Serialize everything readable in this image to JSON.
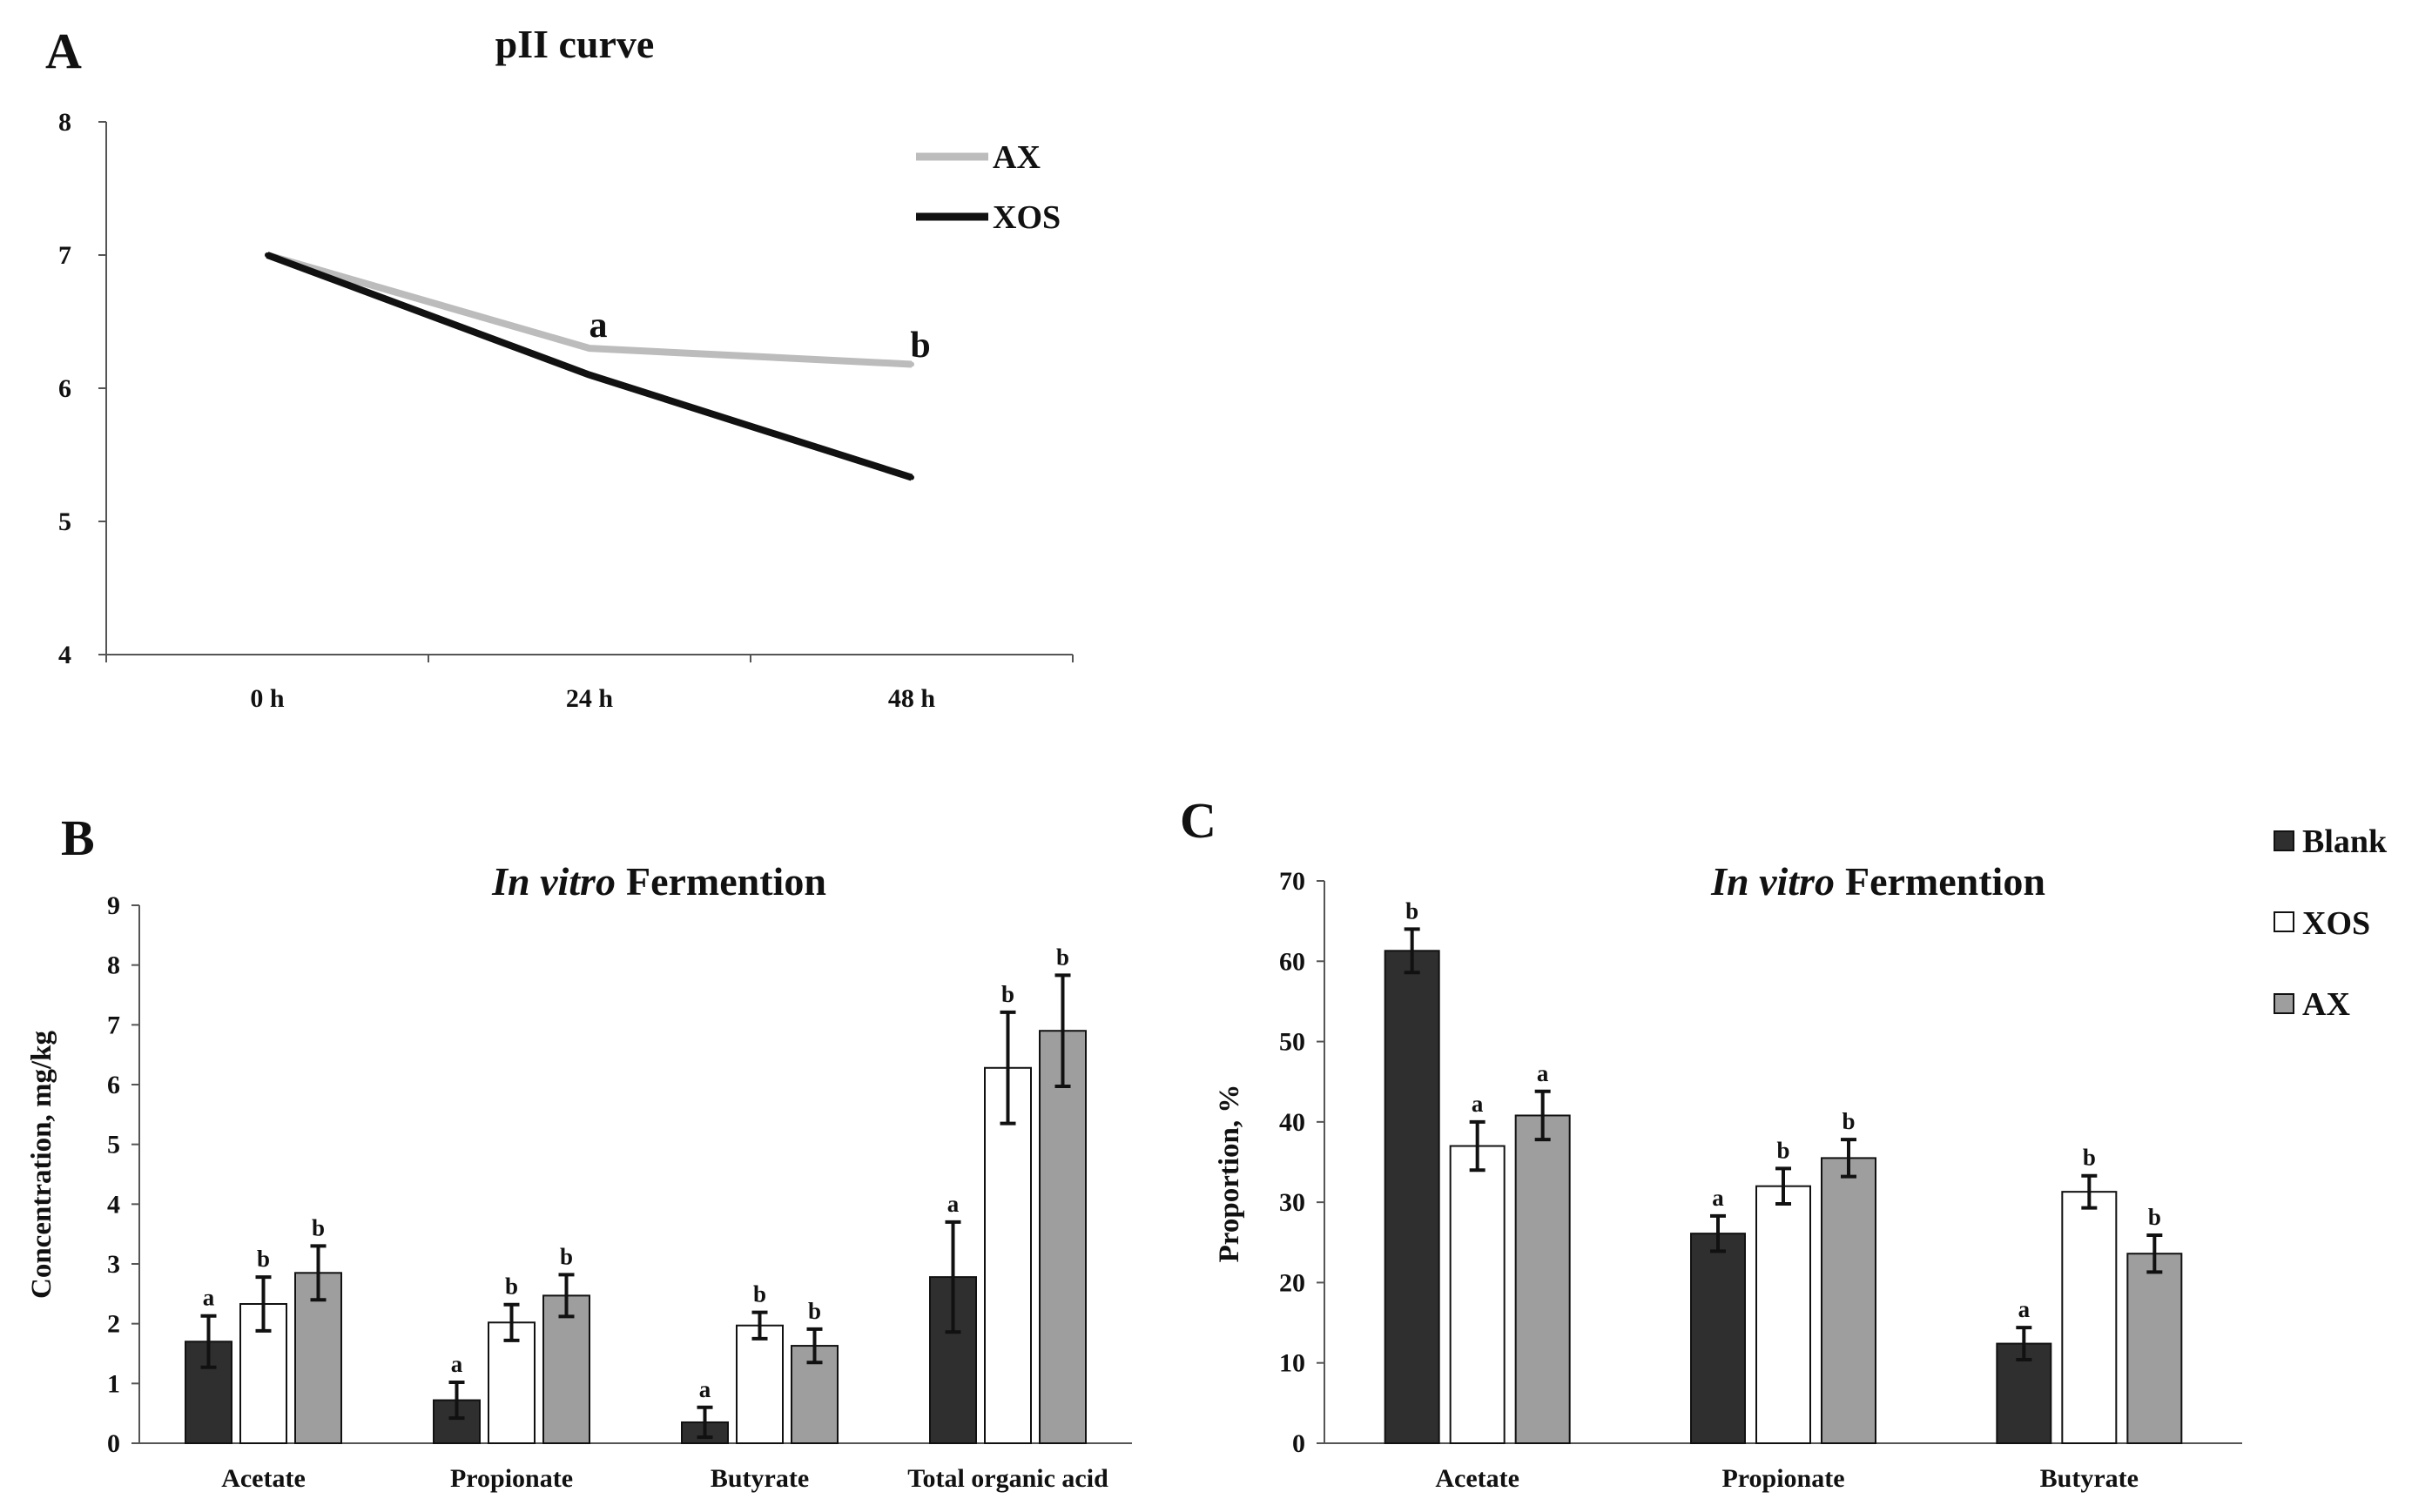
{
  "colors": {
    "blank": "#2f2f2f",
    "xos": "#ffffff",
    "ax": "#9e9e9e",
    "line_ax": "#bcbcbc",
    "line_xos": "#111111",
    "axis": "#555555"
  },
  "chart_data": [
    {
      "id": "A",
      "panel_label": "A",
      "type": "line",
      "title": "pII curve",
      "categories": [
        "0 h",
        "24 h",
        "48 h"
      ],
      "ylim": [
        4,
        8
      ],
      "yticks": [
        "4",
        "5",
        "6",
        "7",
        "8"
      ],
      "xlabel": "",
      "ylabel": "",
      "series": [
        {
          "name": "AX",
          "values": [
            7.0,
            6.3,
            6.18
          ]
        },
        {
          "name": "XOS",
          "values": [
            7.0,
            6.1,
            5.33
          ]
        }
      ],
      "annotations": [
        {
          "text": "a",
          "category": "24 h",
          "value": 6.45
        },
        {
          "text": "b",
          "category": "48 h",
          "value": 6.3
        }
      ],
      "legend": "top-right"
    },
    {
      "id": "B",
      "panel_label": "B",
      "type": "bar",
      "title_italic": "In vitro",
      "title_rest": "Fermention",
      "ylabel": "Concentration, mg/kg",
      "xlabel": "",
      "ylim": [
        0,
        9
      ],
      "yticks": [
        "0",
        "1",
        "2",
        "3",
        "4",
        "5",
        "6",
        "7",
        "8",
        "9"
      ],
      "categories": [
        "Acetate",
        "Propionate",
        "Butyrate",
        "Total organic acid"
      ],
      "series": [
        {
          "name": "Blank",
          "values": [
            1.7,
            0.72,
            0.35,
            2.78
          ],
          "errors": [
            0.43,
            0.3,
            0.25,
            0.92
          ],
          "labels": [
            "a",
            "a",
            "a",
            "a"
          ]
        },
        {
          "name": "XOS",
          "values": [
            2.33,
            2.02,
            1.97,
            6.28
          ],
          "errors": [
            0.45,
            0.3,
            0.22,
            0.93
          ],
          "labels": [
            "b",
            "b",
            "b",
            "b"
          ]
        },
        {
          "name": "AX",
          "values": [
            2.85,
            2.47,
            1.63,
            6.9
          ],
          "errors": [
            0.45,
            0.35,
            0.28,
            0.93
          ],
          "labels": [
            "b",
            "b",
            "b",
            "b"
          ]
        }
      ]
    },
    {
      "id": "C",
      "panel_label": "C",
      "type": "bar",
      "title_italic": "In vitro",
      "title_rest": "Fermention",
      "ylabel": "Proportion, %",
      "xlabel": "",
      "ylim": [
        0,
        70
      ],
      "yticks": [
        "0",
        "10",
        "20",
        "30",
        "40",
        "50",
        "60",
        "70"
      ],
      "categories": [
        "Acetate",
        "Propionate",
        "Butyrate"
      ],
      "series": [
        {
          "name": "Blank",
          "values": [
            61.3,
            26.1,
            12.4
          ],
          "errors": [
            2.7,
            2.2,
            2.0
          ],
          "labels": [
            "b",
            "a",
            "a"
          ]
        },
        {
          "name": "XOS",
          "values": [
            37.0,
            32.0,
            31.3
          ],
          "errors": [
            3.0,
            2.2,
            2.0
          ],
          "labels": [
            "a",
            "b",
            "b"
          ]
        },
        {
          "name": "AX",
          "values": [
            40.8,
            35.5,
            23.6
          ],
          "errors": [
            3.0,
            2.3,
            2.3
          ],
          "labels": [
            "a",
            "b",
            "b"
          ]
        }
      ],
      "legend": "top-right"
    }
  ]
}
